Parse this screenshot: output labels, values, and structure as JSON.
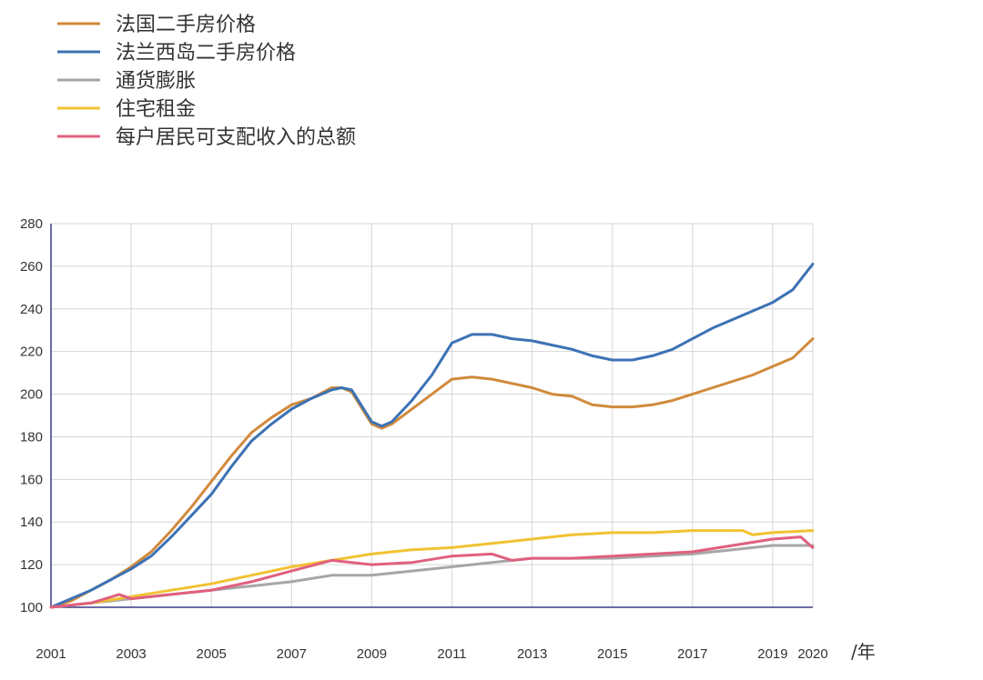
{
  "chart_data": {
    "type": "line",
    "xlabel": "",
    "ylabel": "",
    "x_unit_label": "/年",
    "xlim": [
      2001,
      2020
    ],
    "ylim": [
      100,
      280
    ],
    "y_ticks": [
      100,
      120,
      140,
      160,
      180,
      200,
      220,
      240,
      260,
      280
    ],
    "x_ticks": [
      2001,
      2003,
      2005,
      2007,
      2009,
      2011,
      2013,
      2015,
      2017,
      2019,
      2020
    ],
    "grid": true,
    "legend_position": "top-left",
    "series": [
      {
        "name": "法国二手房价格",
        "color": "#d18a3c",
        "x": [
          2001,
          2001.5,
          2002,
          2002.5,
          2003,
          2003.5,
          2004,
          2004.5,
          2005,
          2005.5,
          2006,
          2006.5,
          2007,
          2007.5,
          2008,
          2008.25,
          2008.5,
          2009,
          2009.25,
          2009.5,
          2010,
          2010.5,
          2011,
          2011.5,
          2012,
          2012.5,
          2013,
          2013.5,
          2014,
          2014.5,
          2015,
          2015.5,
          2016,
          2016.5,
          2017,
          2017.5,
          2018,
          2018.5,
          2019,
          2019.5,
          2020
        ],
        "y": [
          100,
          103,
          108,
          113,
          119,
          126,
          136,
          147,
          159,
          171,
          182,
          189,
          195,
          198,
          203,
          203,
          201,
          186,
          184,
          186,
          193,
          200,
          207,
          208,
          207,
          205,
          203,
          200,
          199,
          195,
          194,
          194,
          195,
          197,
          200,
          203,
          206,
          209,
          213,
          217,
          226
        ]
      },
      {
        "name": "法兰西岛二手房价格",
        "color": "#3c72b4",
        "x": [
          2001,
          2001.5,
          2002,
          2002.5,
          2003,
          2003.5,
          2004,
          2004.5,
          2005,
          2005.5,
          2006,
          2006.5,
          2007,
          2007.5,
          2008,
          2008.25,
          2008.5,
          2009,
          2009.25,
          2009.5,
          2010,
          2010.5,
          2011,
          2011.5,
          2012,
          2012.5,
          2013,
          2013.5,
          2014,
          2014.5,
          2015,
          2015.5,
          2016,
          2016.5,
          2017,
          2017.5,
          2018,
          2018.5,
          2019,
          2019.5,
          2020
        ],
        "y": [
          100,
          104,
          108,
          113,
          118,
          124,
          133,
          143,
          153,
          166,
          178,
          186,
          193,
          198,
          202,
          203,
          202,
          187,
          185,
          187,
          197,
          209,
          224,
          228,
          228,
          226,
          225,
          223,
          221,
          218,
          216,
          216,
          218,
          221,
          226,
          231,
          235,
          239,
          243,
          249,
          261
        ]
      },
      {
        "name": "通货膨胀",
        "color": "#a6a6a6",
        "x": [
          2001,
          2002,
          2003,
          2004,
          2005,
          2006,
          2007,
          2008,
          2009,
          2010,
          2011,
          2012,
          2013,
          2014,
          2015,
          2016,
          2017,
          2018,
          2019,
          2020
        ],
        "y": [
          100,
          102,
          104,
          106,
          108,
          110,
          112,
          115,
          115,
          117,
          119,
          121,
          123,
          123,
          123,
          124,
          125,
          127,
          129,
          129
        ]
      },
      {
        "name": "住宅租金",
        "color": "#f1c232",
        "x": [
          2001,
          2002,
          2003,
          2004,
          2005,
          2006,
          2007,
          2008,
          2009,
          2010,
          2011,
          2012,
          2013,
          2014,
          2015,
          2016,
          2017,
          2018,
          2018.25,
          2018.5,
          2019,
          2020
        ],
        "y": [
          100,
          102,
          105,
          108,
          111,
          115,
          119,
          122,
          125,
          127,
          128,
          130,
          132,
          134,
          135,
          135,
          136,
          136,
          136,
          134,
          135,
          136
        ]
      },
      {
        "name": "每户居民可支配收入的总额",
        "color": "#e0607e",
        "x": [
          2001,
          2002,
          2002.7,
          2003,
          2004,
          2005,
          2006,
          2007,
          2008,
          2009,
          2010,
          2011,
          2012,
          2012.5,
          2013,
          2014,
          2015,
          2016,
          2017,
          2018,
          2019,
          2019.7,
          2020
        ],
        "y": [
          100,
          102,
          106,
          104,
          106,
          108,
          112,
          117,
          122,
          120,
          121,
          124,
          125,
          122,
          123,
          123,
          124,
          125,
          126,
          129,
          132,
          133,
          128
        ]
      }
    ]
  }
}
